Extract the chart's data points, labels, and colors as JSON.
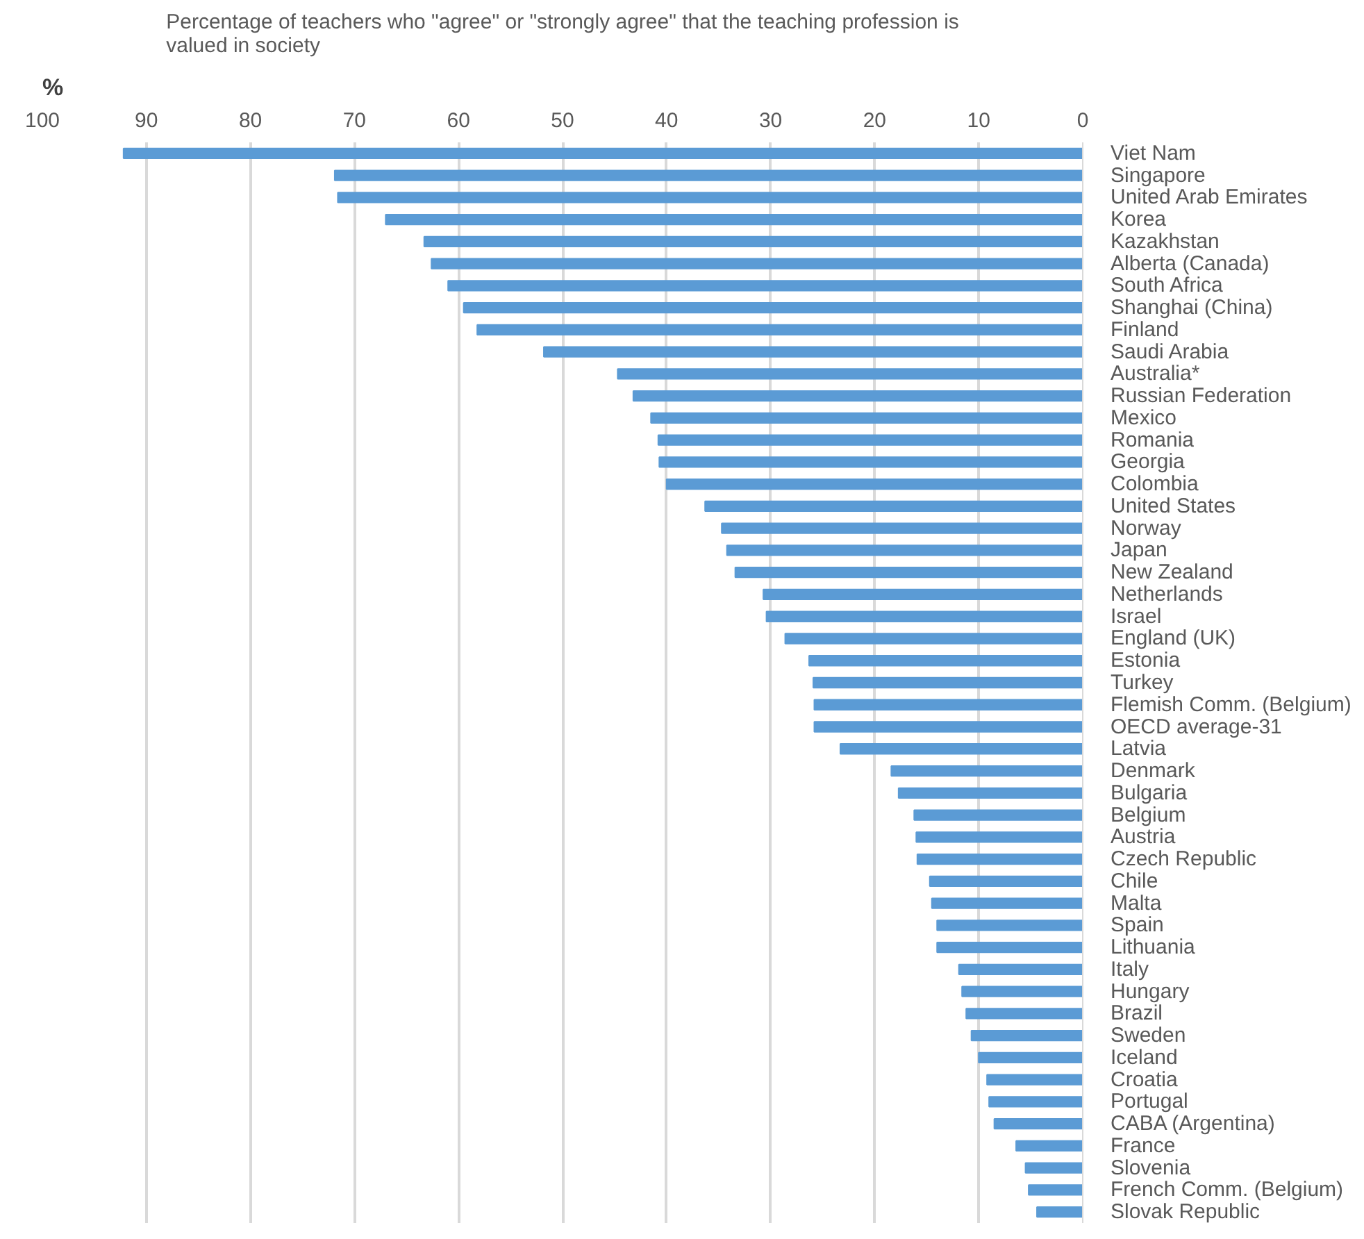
{
  "chart_data": {
    "type": "bar",
    "orientation": "horizontal",
    "title": "Percentage of teachers who \"agree\" or \"strongly agree\" that the teaching profession is\nvalued in society",
    "xlabel": "%",
    "categories": [
      "Viet Nam",
      "Singapore",
      "United Arab Emirates",
      "Korea",
      "Kazakhstan",
      "Alberta (Canada)",
      "South Africa",
      "Shanghai (China)",
      "Finland",
      "Saudi Arabia",
      "Australia*",
      "Russian Federation",
      "Mexico",
      "Romania",
      "Georgia",
      "Colombia",
      "United States",
      "Norway",
      "Japan",
      "New Zealand",
      "Netherlands",
      "Israel",
      "England (UK)",
      "Estonia",
      "Turkey",
      "Flemish Comm. (Belgium)",
      "OECD average-31",
      "Latvia",
      "Denmark",
      "Bulgaria",
      "Belgium",
      "Austria",
      "Czech Republic",
      "Chile",
      "Malta",
      "Spain",
      "Lithuania",
      "Italy",
      "Hungary",
      "Brazil",
      "Sweden",
      "Iceland",
      "Croatia",
      "Portugal",
      "CABA (Argentina)",
      "France",
      "Slovenia",
      "French Comm. (Belgium)",
      "Slovak Republic"
    ],
    "values": [
      92.2,
      71.9,
      71.6,
      67.0,
      63.3,
      62.6,
      61.0,
      59.5,
      58.2,
      51.8,
      44.7,
      43.2,
      41.5,
      40.8,
      40.7,
      40.0,
      36.3,
      34.7,
      34.2,
      33.4,
      30.7,
      30.4,
      28.6,
      26.3,
      25.9,
      25.8,
      25.8,
      23.3,
      18.4,
      17.7,
      16.2,
      16.0,
      15.9,
      14.7,
      14.5,
      14.0,
      14.0,
      11.9,
      11.6,
      11.2,
      10.7,
      10.0,
      9.2,
      9.0,
      8.5,
      6.4,
      5.5,
      5.2,
      4.4
    ],
    "color": "#5b9bd5",
    "xlim": [
      100,
      0
    ],
    "xticks": [
      100,
      90,
      80,
      70,
      60,
      50,
      40,
      30,
      20,
      10,
      0
    ],
    "grid": "x"
  }
}
